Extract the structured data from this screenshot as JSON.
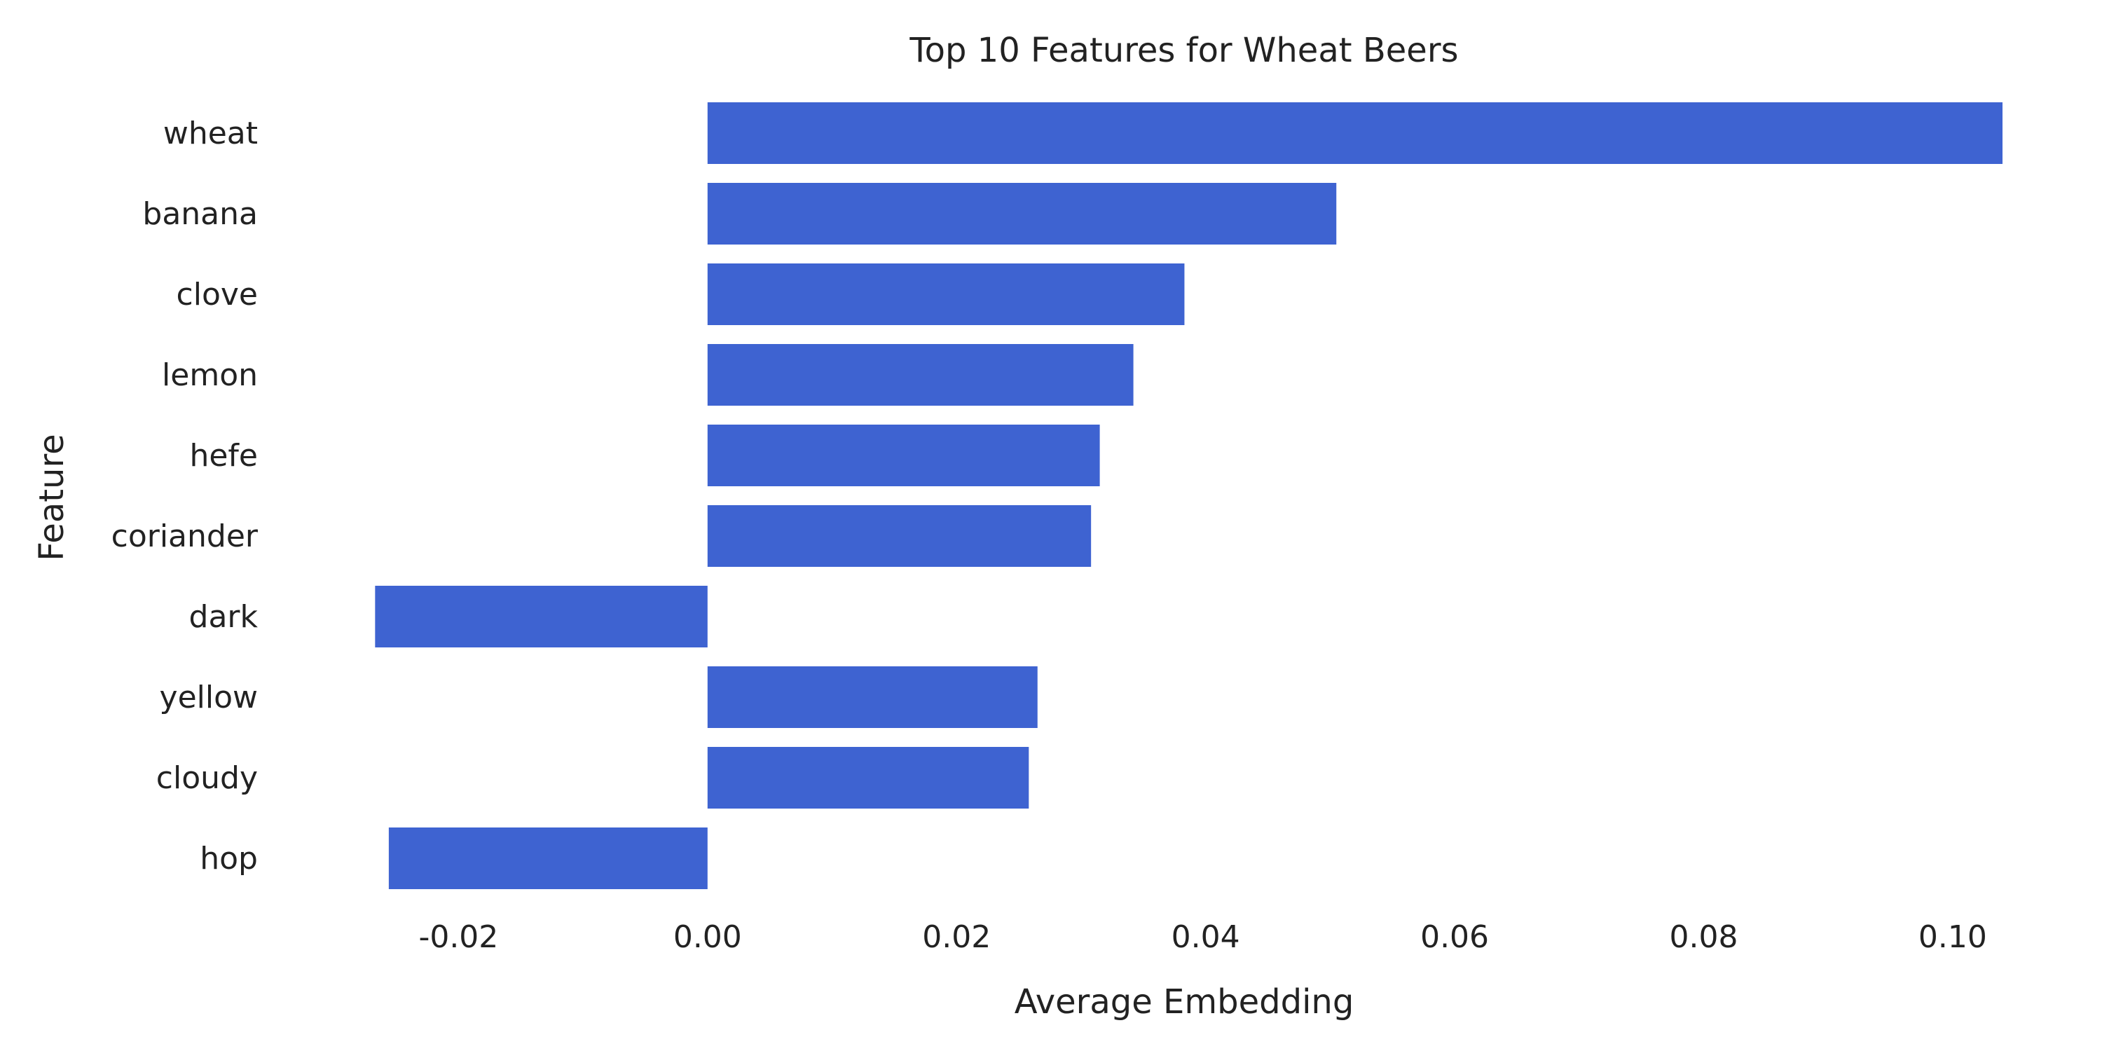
{
  "chart_data": {
    "type": "bar",
    "orientation": "horizontal",
    "title": "Top 10 Features for Wheat Beers",
    "xlabel": "Average Embedding",
    "ylabel": "Feature",
    "categories": [
      "wheat",
      "banana",
      "clove",
      "lemon",
      "hefe",
      "coriander",
      "dark",
      "yellow",
      "cloudy",
      "hop"
    ],
    "values": [
      0.104,
      0.0505,
      0.0383,
      0.0342,
      0.0315,
      0.0308,
      -0.0267,
      0.0265,
      0.0258,
      -0.0256
    ],
    "xlim": [
      -0.027,
      0.104
    ],
    "xticks": [
      -0.02,
      0.0,
      0.02,
      0.04,
      0.06,
      0.08,
      0.1
    ],
    "xtick_labels": [
      "-0.02",
      "0.00",
      "0.02",
      "0.04",
      "0.06",
      "0.08",
      "0.10"
    ],
    "grid": false,
    "legend": "none",
    "bar_color": "#3e63d1"
  }
}
